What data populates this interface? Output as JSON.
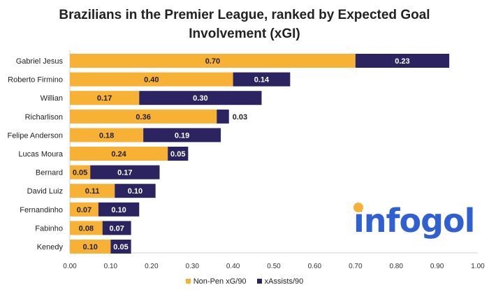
{
  "chart_data": {
    "type": "bar",
    "orientation": "horizontal",
    "stacked": true,
    "title": "Brazilians in the Premier League, ranked by Expected Goal Involvement (xGI)",
    "title_lines": [
      "Brazilians in the Premier League, ranked by Expected Goal",
      "Involvement (xGI)"
    ],
    "categories": [
      "Gabriel Jesus",
      "Roberto Firmino",
      "Willian",
      "Richarlison",
      "Felipe Anderson",
      "Lucas Moura",
      "Bernard",
      "David Luiz",
      "Fernandinho",
      "Fabinho",
      "Kenedy"
    ],
    "series": [
      {
        "name": "Non-Pen xG/90",
        "color": "#f7b135",
        "values": [
          0.7,
          0.4,
          0.17,
          0.36,
          0.18,
          0.24,
          0.05,
          0.11,
          0.07,
          0.08,
          0.1
        ]
      },
      {
        "name": "xAssists/90",
        "color": "#2b2460",
        "values": [
          0.23,
          0.14,
          0.3,
          0.03,
          0.19,
          0.05,
          0.17,
          0.1,
          0.1,
          0.07,
          0.05
        ]
      }
    ],
    "xlim": [
      0,
      1.0
    ],
    "xticks": [
      "0.00",
      "0.10",
      "0.20",
      "0.30",
      "0.40",
      "0.50",
      "0.60",
      "0.70",
      "0.80",
      "0.90",
      "1.00"
    ],
    "xlabel": "",
    "ylabel": "",
    "grid": false,
    "legend": "bottom"
  },
  "logo": {
    "text": "infogol",
    "color": "#2f5fd0",
    "accent": "#f7b135"
  }
}
